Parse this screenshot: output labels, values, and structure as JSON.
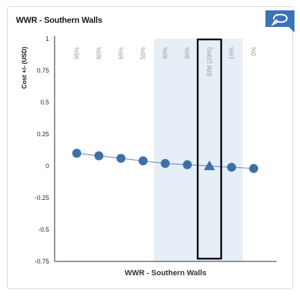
{
  "card": {
    "title": "WWR - Southern Walls"
  },
  "corner_button": {
    "icon": "chat-bubble-icon",
    "color": "#3a73b6"
  },
  "chart_data": {
    "type": "scatter",
    "title": "",
    "xlabel": "WWR - Southern Walls",
    "ylabel": "Cost +/- (USD)",
    "ylim": [
      -0.75,
      1
    ],
    "yticks": [
      "1",
      "0.75",
      "0.5",
      "0.25",
      "0",
      "-0.25",
      "-0.5",
      "-0.75"
    ],
    "grid": false,
    "categories": [
      "95%",
      "80%",
      "65%",
      "50%",
      "40%",
      "30%",
      "BIM (29%)",
      "15%",
      "0%"
    ],
    "series": [
      {
        "values": [
          0.1,
          0.08,
          0.06,
          0.04,
          0.02,
          0.01,
          0.0,
          -0.01,
          -0.02
        ],
        "markers": [
          "circle",
          "circle",
          "circle",
          "circle",
          "circle",
          "circle",
          "triangle",
          "circle",
          "circle"
        ]
      }
    ],
    "highlight_band": {
      "from_category": "40%",
      "to_category": "15%",
      "color": "#e6eef8"
    },
    "selected_category": "BIM (29%)",
    "marker_color": "#3f6fa8",
    "line_color": "#5a7fb0"
  }
}
